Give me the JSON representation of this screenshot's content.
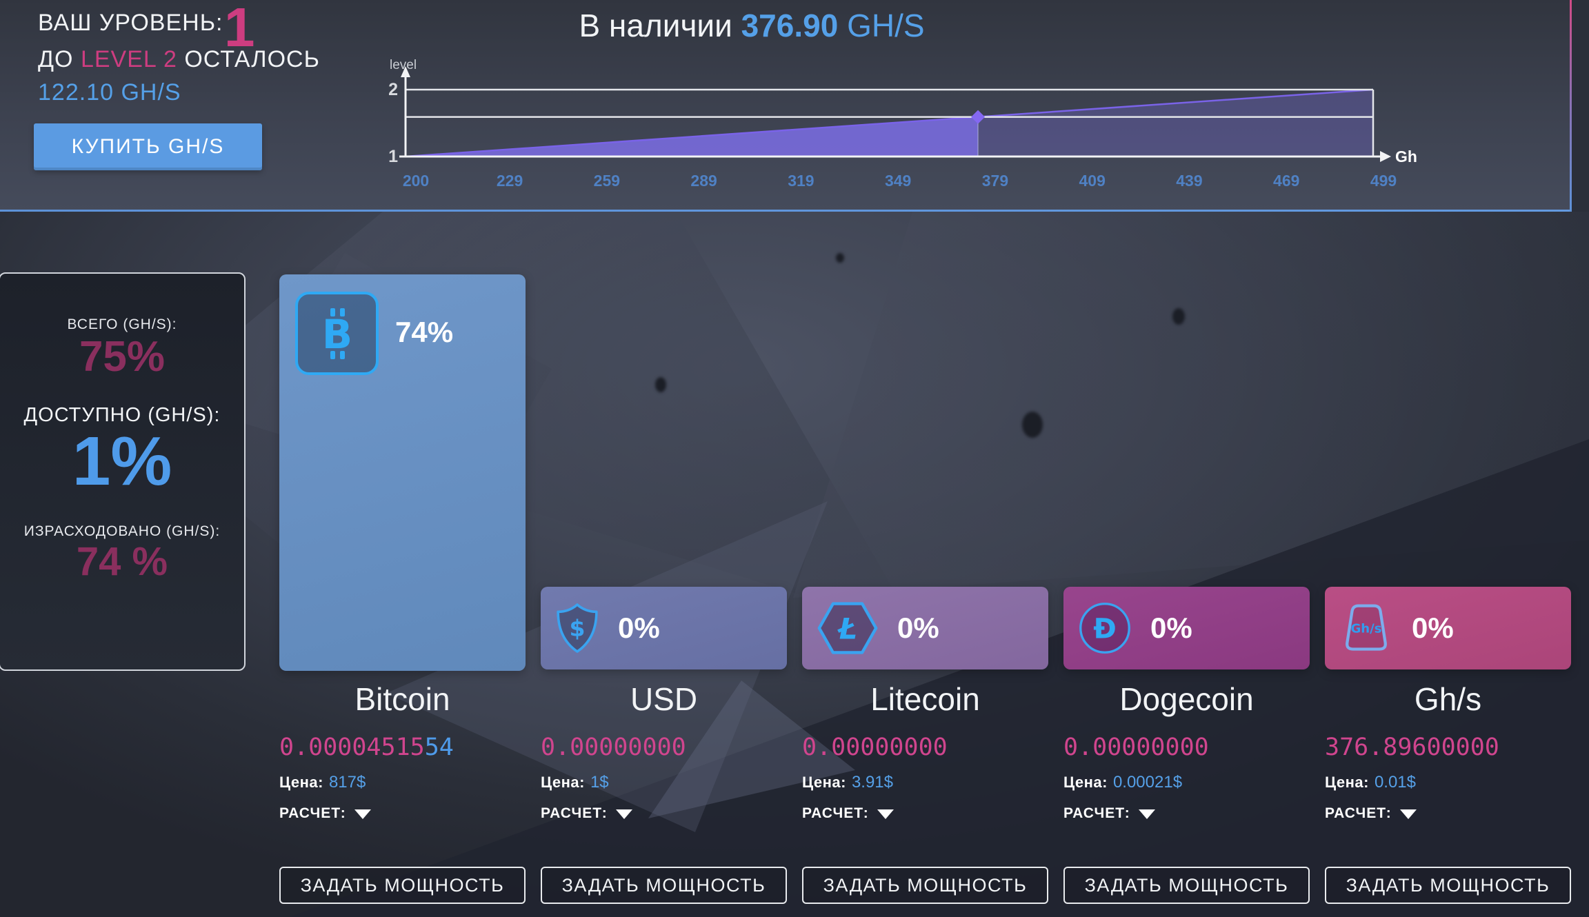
{
  "header": {
    "level_label": "ВАШ УРОВЕНЬ:",
    "level_value": "1",
    "next_prefix": "ДО",
    "next_highlight": "LEVEL 2",
    "next_suffix": "ОСТАЛОСЬ",
    "remaining_value": "122.10 GH/S",
    "buy_button": "КУПИТЬ GH/S",
    "available_prefix": "В наличии",
    "available_value": "376.90",
    "available_unit": "GH/S"
  },
  "chart_data": {
    "type": "area",
    "title": "",
    "xlabel": "Gh/s",
    "ylabel": "level",
    "xlim": [
      200,
      499
    ],
    "ylim": [
      1,
      2
    ],
    "x_ticks": [
      200,
      229,
      259,
      289,
      319,
      349,
      379,
      409,
      439,
      469,
      499
    ],
    "y_ticks": [
      1,
      2
    ],
    "series": [
      {
        "name": "level-progress",
        "x": [
          200,
          499
        ],
        "y": [
          1,
          2
        ]
      }
    ],
    "current_point": {
      "x": 376.9,
      "y": 1.59
    },
    "grid": false,
    "legend": "none",
    "colors": {
      "area_solid": "rgba(122,108,224,0.88)",
      "area_light": "rgba(122,108,224,0.30)",
      "line": "#7a63e8",
      "marker": "#8468f2",
      "axis": "#f2f3f5",
      "frame": "#e4e6ea",
      "tick_label": "#4f81c4",
      "axis_label": "#ffffff",
      "y_tick_label": "#d8dade"
    }
  },
  "stats_panel": {
    "total_label": "ВСЕГО (GH/S):",
    "total_value": "75%",
    "available_label": "ДОСТУПНО (GH/S):",
    "available_value": "1%",
    "spent_label": "ИЗРАСХОДОВАНО (GH/S):",
    "spent_value": "74 %"
  },
  "cards": [
    {
      "key": "bitcoin",
      "title": "Bitcoin",
      "percent": "74%",
      "balance_main": "0.00004515",
      "balance_accent": "54",
      "price_label": "Цена:",
      "price_value": "817$",
      "calc_label": "РАСЧЕТ:",
      "power_button": "ЗАДАТЬ МОЩНОСТЬ",
      "color_top": "#6f97c9",
      "color_bottom": "#6089bb",
      "icon": "bitcoin"
    },
    {
      "key": "usd",
      "title": "USD",
      "percent": "0%",
      "balance_main": "0.00000000",
      "balance_accent": "",
      "price_label": "Цена:",
      "price_value": "1$",
      "calc_label": "РАСЧЕТ:",
      "power_button": "ЗАДАТЬ МОЩНОСТЬ",
      "color_top": "#717aae",
      "color_bottom": "#666fa3",
      "icon": "usd-shield"
    },
    {
      "key": "litecoin",
      "title": "Litecoin",
      "percent": "0%",
      "balance_main": "0.00000000",
      "balance_accent": "",
      "price_label": "Цена:",
      "price_value": "3.91$",
      "calc_label": "РАСЧЕТ:",
      "power_button": "ЗАДАТЬ МОЩНОСТЬ",
      "color_top": "#8f74aa",
      "color_bottom": "#83679e",
      "icon": "litecoin-hexagon"
    },
    {
      "key": "dogecoin",
      "title": "Dogecoin",
      "percent": "0%",
      "balance_main": "0.00000000",
      "balance_accent": "",
      "price_label": "Цена:",
      "price_value": "0.00021$",
      "calc_label": "РАСЧЕТ:",
      "power_button": "ЗАДАТЬ МОЩНОСТЬ",
      "color_top": "#98458d",
      "color_bottom": "#8a3980",
      "icon": "dogecoin-circle"
    },
    {
      "key": "ghs",
      "title": "Gh/s",
      "percent": "0%",
      "balance_main": "376.89600000",
      "balance_accent": "",
      "price_label": "Цена:",
      "price_value": "0.01$",
      "calc_label": "РАСЧЕТ:",
      "power_button": "ЗАДАТЬ МОЩНОСТЬ",
      "color_top": "#b94e85",
      "color_bottom": "#ab4579",
      "icon": "ghs-trapezoid"
    }
  ],
  "accent_colors": {
    "pink": "#cd3d80",
    "blue": "#55a0e8",
    "dark_pink": "#8a2f5e",
    "icon_blue": "#2fa9f4"
  }
}
